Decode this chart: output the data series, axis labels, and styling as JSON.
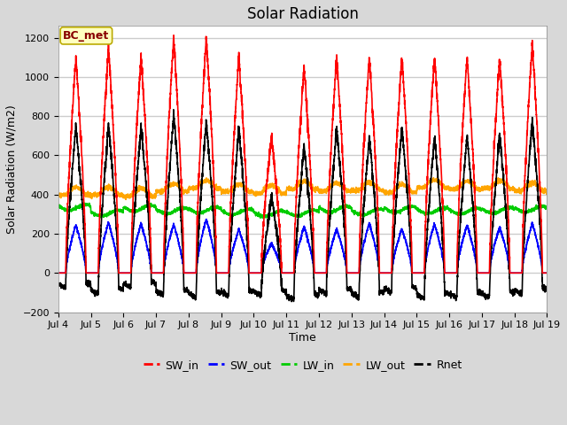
{
  "title": "Solar Radiation",
  "ylabel": "Solar Radiation (W/m2)",
  "xlabel": "Time",
  "ylim": [
    -200,
    1260
  ],
  "yticks": [
    -200,
    0,
    200,
    400,
    600,
    800,
    1000,
    1200
  ],
  "annotation_text": "BC_met",
  "annotation_fc": "#FFFFC0",
  "annotation_ec": "#BBAA00",
  "annotation_tc": "#880000",
  "series_colors": {
    "SW_in": "#FF0000",
    "SW_out": "#0000FF",
    "LW_in": "#00CC00",
    "LW_out": "#FFA500",
    "Rnet": "#000000"
  },
  "bg_color": "#D8D8D8",
  "plot_bg_color": "#FFFFFF",
  "grid_color": "#CCCCCC",
  "n_days": 15,
  "start_day": 4,
  "ppd": 288,
  "title_fontsize": 12,
  "label_fontsize": 9,
  "tick_fontsize": 8,
  "legend_fontsize": 9,
  "figsize": [
    6.4,
    4.8
  ],
  "dpi": 100
}
